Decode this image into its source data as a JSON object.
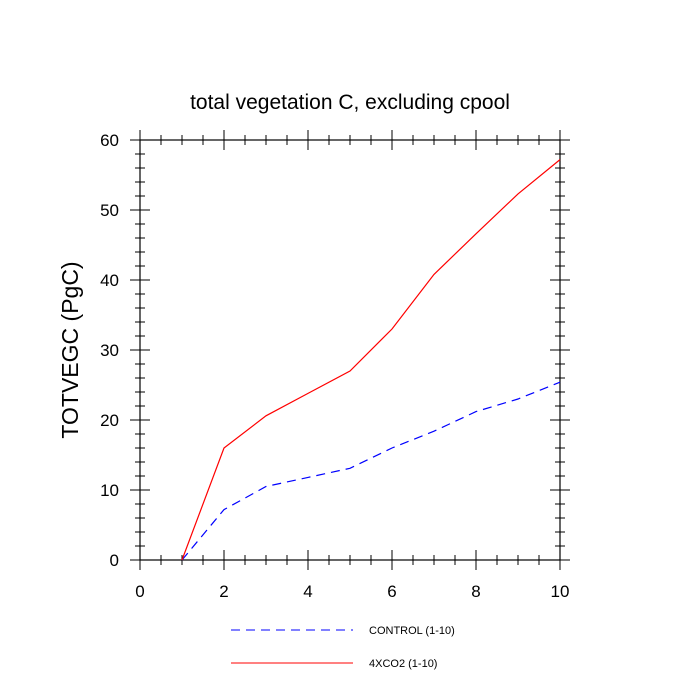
{
  "chart_data": {
    "type": "line",
    "title": "total vegetation C, excluding cpool",
    "xlabel": "",
    "ylabel": "TOTVEGC  (PgC)",
    "xlim": [
      0,
      10
    ],
    "ylim": [
      0,
      60
    ],
    "xticks": [
      0,
      2,
      4,
      6,
      8,
      10
    ],
    "yticks": [
      0,
      10,
      20,
      30,
      40,
      50,
      60
    ],
    "x": [
      1,
      2,
      3,
      4,
      5,
      6,
      7,
      8,
      9,
      10
    ],
    "series": [
      {
        "name": "CONTROL (1-10)",
        "color": "#0000ff",
        "style": "dashed",
        "values": [
          0,
          7.2,
          10.5,
          11.8,
          13.1,
          16.0,
          18.4,
          21.2,
          23.0,
          25.4
        ]
      },
      {
        "name": "4XCO2 (1-10)",
        "color": "#ff0000",
        "style": "solid",
        "values": [
          0,
          16.0,
          20.6,
          23.8,
          27.0,
          33.0,
          40.8,
          46.6,
          52.3,
          57.2
        ]
      }
    ],
    "grid": false,
    "legend": "bottom"
  }
}
